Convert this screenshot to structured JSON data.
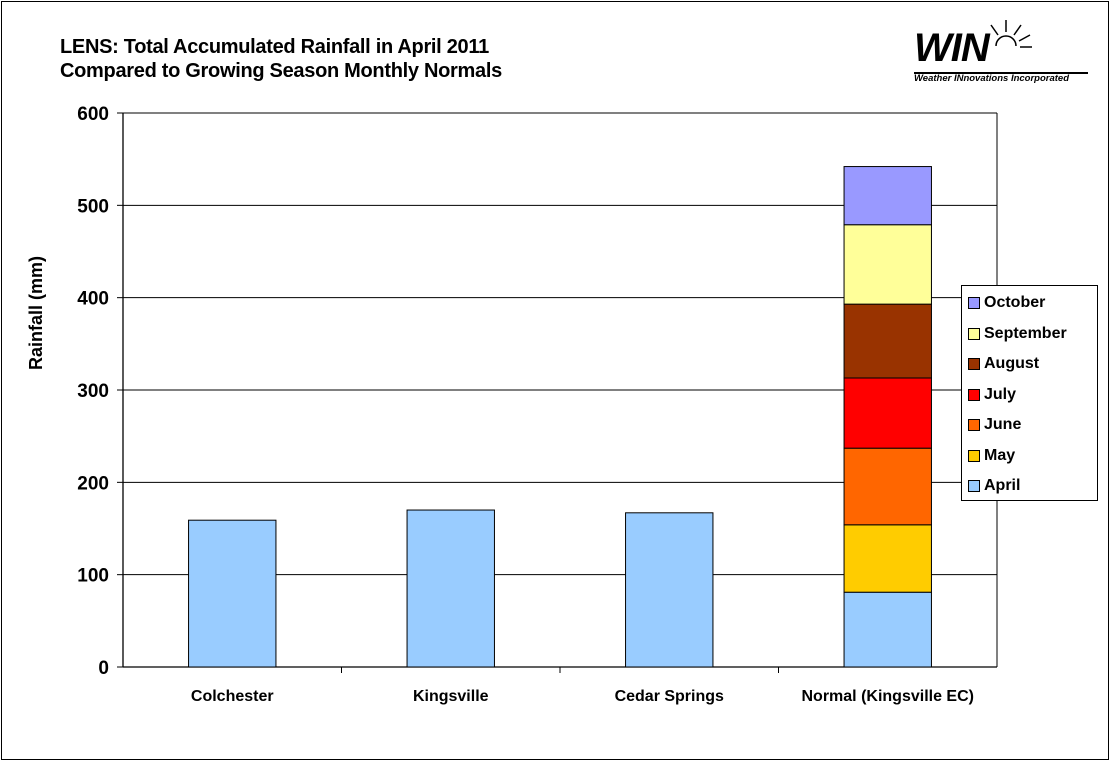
{
  "title": {
    "line1": "LENS: Total Accumulated Rainfall in April 2011",
    "line2": "Compared to Growing Season Monthly Normals"
  },
  "logo": {
    "word": "WIN",
    "subtitle": "Weather INnovations Incorporated"
  },
  "chart_data": {
    "type": "bar",
    "stacked": true,
    "categories": [
      "Colchester",
      "Kingsville",
      "Cedar Springs",
      "Normal (Kingsville EC)"
    ],
    "ylabel": "Rainfall (mm)",
    "ylim": [
      0,
      600
    ],
    "yticks": [
      0,
      100,
      200,
      300,
      400,
      500,
      600
    ],
    "grid": true,
    "legend_position": "right",
    "series": [
      {
        "name": "April",
        "color": "#99ccff",
        "values": [
          159,
          170,
          167,
          81
        ]
      },
      {
        "name": "May",
        "color": "#ffcc00",
        "values": [
          0,
          0,
          0,
          73
        ]
      },
      {
        "name": "June",
        "color": "#ff6600",
        "values": [
          0,
          0,
          0,
          83
        ]
      },
      {
        "name": "July",
        "color": "#ff0000",
        "values": [
          0,
          0,
          0,
          76
        ]
      },
      {
        "name": "August",
        "color": "#993300",
        "values": [
          0,
          0,
          0,
          80
        ]
      },
      {
        "name": "September",
        "color": "#ffff99",
        "values": [
          0,
          0,
          0,
          86
        ]
      },
      {
        "name": "October",
        "color": "#9999ff",
        "values": [
          0,
          0,
          0,
          63
        ]
      }
    ]
  }
}
